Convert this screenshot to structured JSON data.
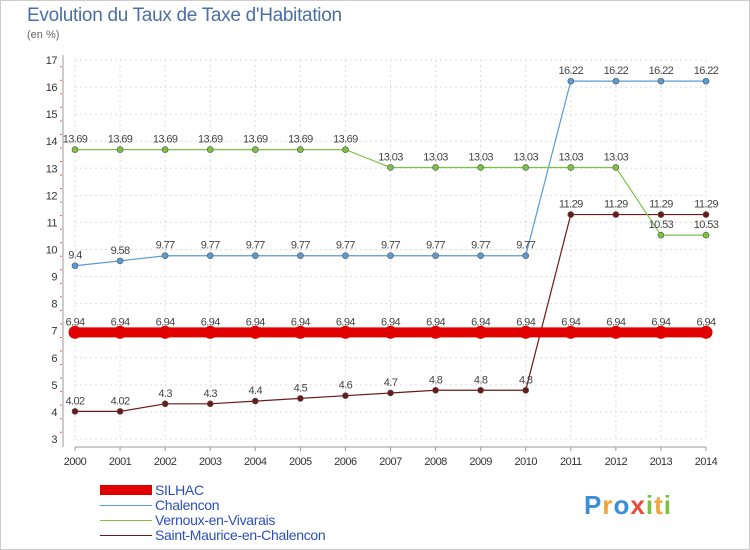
{
  "title": "Evolution du Taux de Taxe d'Habitation",
  "subtitle": "(en %)",
  "logo": {
    "letters": [
      "P",
      "r",
      "o",
      "x",
      "i",
      "t",
      "i"
    ],
    "colors": [
      "#3b8fd9",
      "#f2a33c",
      "#3b8fd9",
      "#e84a3c",
      "#7bc043",
      "#f2a33c",
      "#7bc043"
    ]
  },
  "chart_data": {
    "type": "line",
    "title": "Evolution du Taux de Taxe d'Habitation",
    "ylabel": "(en %)",
    "xlabel": "",
    "ylim": [
      3,
      17
    ],
    "yticks": [
      "3",
      "4",
      "5",
      "6",
      "7",
      "8",
      "9",
      "10",
      "11",
      "12",
      "13",
      "14",
      "15",
      "16",
      "17"
    ],
    "x": [
      "2000",
      "2001",
      "2002",
      "2003",
      "2004",
      "2005",
      "2006",
      "2007",
      "2008",
      "2009",
      "2010",
      "2011",
      "2012",
      "2013",
      "2014"
    ],
    "series": [
      {
        "name": "SILHAC",
        "color": "#e00000",
        "values": [
          6.94,
          6.94,
          6.94,
          6.94,
          6.94,
          6.94,
          6.94,
          6.94,
          6.94,
          6.94,
          6.94,
          6.94,
          6.94,
          6.94,
          6.94
        ],
        "labels": [
          "6.94",
          "6.94",
          "6.94",
          "6.94",
          "6.94",
          "6.94",
          "6.94",
          "6.94",
          "6.94",
          "6.94",
          "6.94",
          "6.94",
          "6.94",
          "6.94",
          "6.94"
        ]
      },
      {
        "name": "Chalencon",
        "color": "#5a9bd4",
        "values": [
          9.4,
          9.58,
          9.77,
          9.77,
          9.77,
          9.77,
          9.77,
          9.77,
          9.77,
          9.77,
          9.77,
          16.22,
          16.22,
          16.22,
          16.22
        ],
        "labels": [
          "9.4",
          "9.58",
          "9.77",
          "9.77",
          "9.77",
          "9.77",
          "9.77",
          "9.77",
          "9.77",
          "9.77",
          "9.77",
          "16.22",
          "16.22",
          "16.22",
          "16.22"
        ]
      },
      {
        "name": "Vernoux-en-Vivarais",
        "color": "#7cc242",
        "values": [
          13.69,
          13.69,
          13.69,
          13.69,
          13.69,
          13.69,
          13.69,
          13.03,
          13.03,
          13.03,
          13.03,
          13.03,
          13.03,
          10.53,
          10.53
        ],
        "labels": [
          "13.69",
          "13.69",
          "13.69",
          "13.69",
          "13.69",
          "13.69",
          "13.69",
          "13.03",
          "13.03",
          "13.03",
          "13.03",
          "13.03",
          "13.03",
          "10.53",
          "10.53"
        ]
      },
      {
        "name": "Saint-Maurice-en-Chalencon",
        "color": "#6b1a1a",
        "values": [
          4.02,
          4.02,
          4.3,
          4.3,
          4.4,
          4.5,
          4.6,
          4.7,
          4.8,
          4.8,
          4.8,
          11.29,
          11.29,
          11.29,
          11.29
        ],
        "labels": [
          "4.02",
          "4.02",
          "4.3",
          "4.3",
          "4.4",
          "4.5",
          "4.6",
          "4.7",
          "4.8",
          "4.8",
          "4.8",
          "11.29",
          "11.29",
          "11.29",
          "11.29"
        ]
      }
    ],
    "grid": true,
    "legend_position": "bottom-left"
  }
}
